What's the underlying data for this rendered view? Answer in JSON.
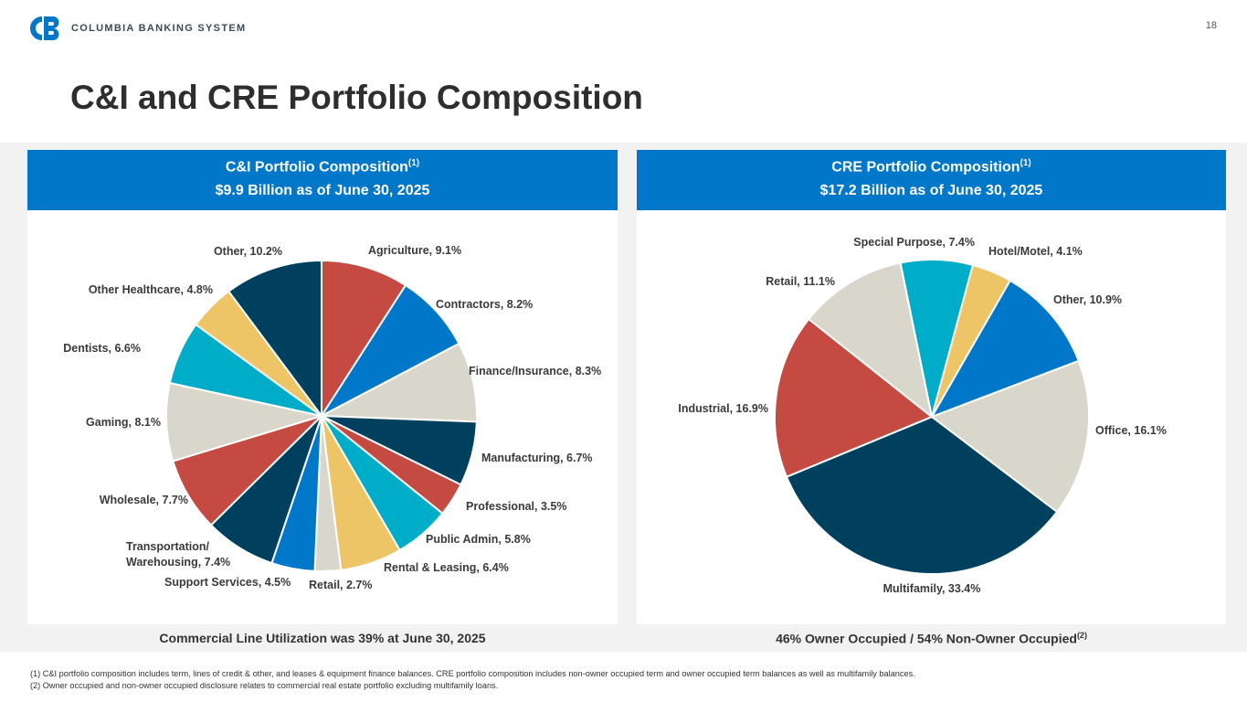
{
  "header": {
    "brand_name": "COLUMBIA BANKING SYSTEM",
    "logo_icon": "cb-monogram-icon",
    "page_number": "18"
  },
  "title": "C&I and CRE Portfolio Composition",
  "left_panel": {
    "heading": "C&I Portfolio Composition",
    "heading_note": "(1)",
    "subheading": "$9.9 Billion as of June 30, 2025",
    "footer": "Commercial Line Utilization was 39% at June 30, 2025"
  },
  "right_panel": {
    "heading": "CRE Portfolio Composition",
    "heading_note": "(1)",
    "subheading": "$17.2 Billion as of June 30, 2025",
    "footer": "46% Owner Occupied / 54% Non-Owner Occupied",
    "footer_note": "(2)"
  },
  "footnotes": [
    "(1)  C&I portfolio composition includes term, lines of credit & other, and leases & equipment finance balances. CRE portfolio composition includes non-owner occupied term and owner occupied term balances as well as multifamily balances.",
    "(2)  Owner occupied and non-owner occupied disclosure relates to commercial real estate portfolio excluding multifamily loans."
  ],
  "colors": {
    "header_blue": "#0077c8",
    "navy": "#00405f",
    "red": "#c54b42",
    "blue": "#0077c8",
    "beige": "#d9d6cb",
    "teal": "#00adc8",
    "yellow": "#edc466",
    "band_gray": "#f2f2f2"
  },
  "chart_data": [
    {
      "type": "pie",
      "slices": [
        {
          "label": "Agriculture, 9.1%",
          "value": 9.1,
          "color": "#c54b42"
        },
        {
          "label": "Contractors, 8.2%",
          "value": 8.2,
          "color": "#0077c8"
        },
        {
          "label": "Finance/Insurance, 8.3%",
          "value": 8.3,
          "color": "#d9d6cb"
        },
        {
          "label": "Manufacturing, 6.7%",
          "value": 6.7,
          "color": "#00405f"
        },
        {
          "label": "Professional, 3.5%",
          "value": 3.5,
          "color": "#c54b42"
        },
        {
          "label": "Public Admin, 5.8%",
          "value": 5.8,
          "color": "#00adc8"
        },
        {
          "label": "Rental & Leasing, 6.4%",
          "value": 6.4,
          "color": "#edc466"
        },
        {
          "label": "Retail, 2.7%",
          "value": 2.7,
          "color": "#d9d6cb"
        },
        {
          "label": "Support Services, 4.5%",
          "value": 4.5,
          "color": "#0077c8"
        },
        {
          "label": "Transportation/\nWarehousing, 7.4%",
          "value": 7.4,
          "color": "#00405f"
        },
        {
          "label": "Wholesale, 7.7%",
          "value": 7.7,
          "color": "#c54b42"
        },
        {
          "label": "Gaming, 8.1%",
          "value": 8.1,
          "color": "#d9d6cb"
        },
        {
          "label": "Dentists, 6.6%",
          "value": 6.6,
          "color": "#00adc8"
        },
        {
          "label": "Other Healthcare, 4.8%",
          "value": 4.8,
          "color": "#edc466"
        },
        {
          "label": "Other, 10.2%",
          "value": 10.2,
          "color": "#00405f"
        }
      ]
    },
    {
      "type": "pie",
      "slices": [
        {
          "label": "Hotel/Motel, 4.1%",
          "value": 4.1,
          "color": "#edc466"
        },
        {
          "label": "Other, 10.9%",
          "value": 10.9,
          "color": "#0077c8"
        },
        {
          "label": "Office, 16.1%",
          "value": 16.1,
          "color": "#d9d6cb"
        },
        {
          "label": "Multifamily, 33.4%",
          "value": 33.4,
          "color": "#00405f"
        },
        {
          "label": "Industrial, 16.9%",
          "value": 16.9,
          "color": "#c54b42"
        },
        {
          "label": "Retail, 11.1%",
          "value": 11.1,
          "color": "#d9d6cb"
        },
        {
          "label": "Special Purpose, 7.4%",
          "value": 7.4,
          "color": "#00adc8"
        }
      ]
    }
  ]
}
